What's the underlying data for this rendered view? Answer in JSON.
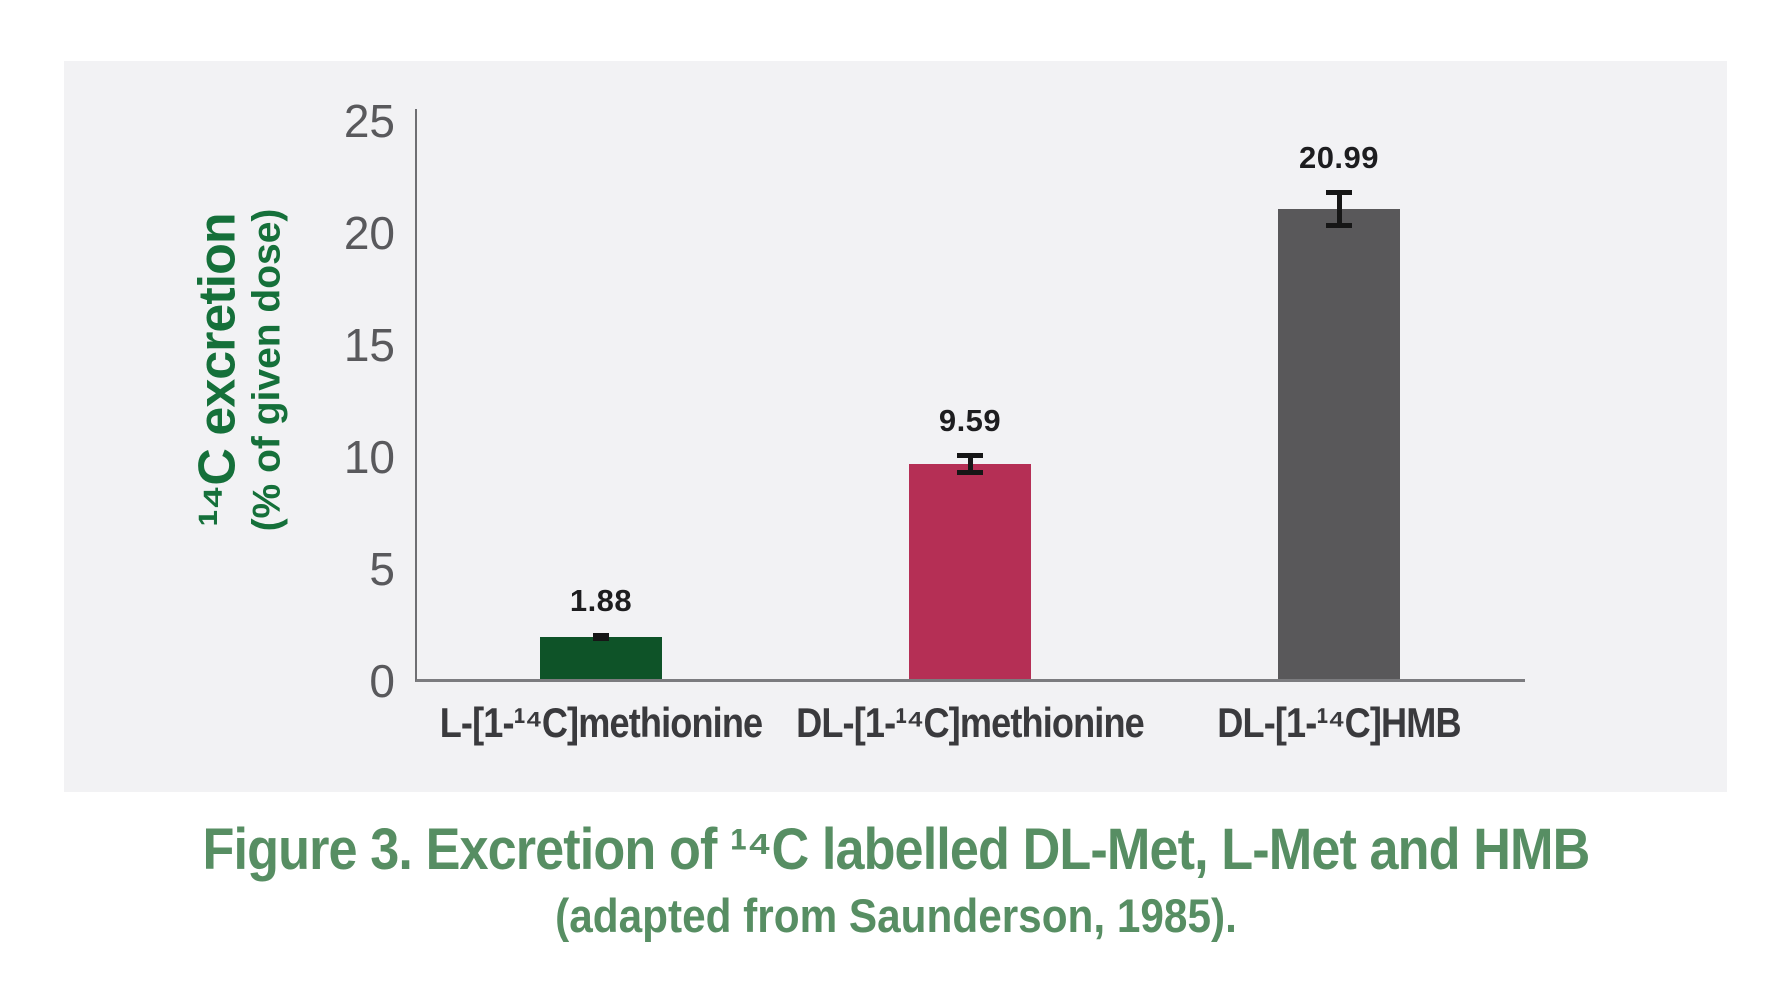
{
  "chart_data": {
    "type": "bar",
    "categories": [
      "L-[1-¹⁴C]methionine",
      "DL-[1-¹⁴C]methionine",
      "DL-[1-¹⁴C]HMB"
    ],
    "values": [
      1.88,
      9.59,
      20.99
    ],
    "value_labels": [
      "1.88",
      "9.59",
      "20.99"
    ],
    "errors_est": [
      0.18,
      0.5,
      0.85
    ],
    "bar_colors": [
      "#0e5328",
      "#b52f55",
      "#59585a"
    ],
    "title": "",
    "xlabel": "",
    "ylabel_line1": "¹⁴C excretion",
    "ylabel_line2": "(% of given dose)",
    "yticks": [
      0,
      5,
      10,
      15,
      20,
      25
    ],
    "ylim": [
      0,
      25
    ],
    "grid": false,
    "legend": "none"
  },
  "caption": {
    "line1": "Figure 3. Excretion of ¹⁴C labelled DL-Met, L-Met and HMB",
    "line2": "(adapted from Saunderson, 1985)."
  },
  "colors": {
    "page_bg": "#ffffff",
    "panel_bg": "#f2f2f4",
    "axis_left": "#6f6f72",
    "axis_bottom": "#7c7c7f",
    "tick_text": "#59595c",
    "category_text": "#3a3a3d",
    "value_text": "#1d1d1f",
    "y_title_text": "#15703a",
    "caption_text": "#578e63",
    "error_bar": "#161616"
  }
}
